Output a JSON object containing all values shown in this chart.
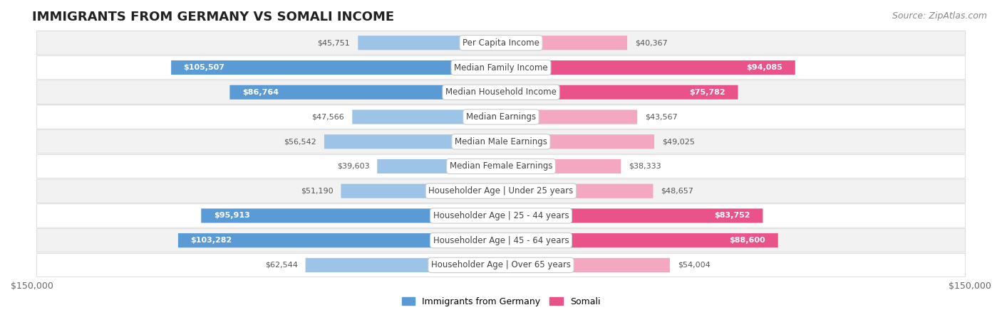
{
  "title": "IMMIGRANTS FROM GERMANY VS SOMALI INCOME",
  "source": "Source: ZipAtlas.com",
  "categories": [
    "Per Capita Income",
    "Median Family Income",
    "Median Household Income",
    "Median Earnings",
    "Median Male Earnings",
    "Median Female Earnings",
    "Householder Age | Under 25 years",
    "Householder Age | 25 - 44 years",
    "Householder Age | 45 - 64 years",
    "Householder Age | Over 65 years"
  ],
  "germany_values": [
    45751,
    105507,
    86764,
    47566,
    56542,
    39603,
    51190,
    95913,
    103282,
    62544
  ],
  "somali_values": [
    40367,
    94085,
    75782,
    43567,
    49025,
    38333,
    48657,
    83752,
    88600,
    54004
  ],
  "germany_color_large": "#5b9bd5",
  "germany_color_small": "#9dc3e6",
  "somali_color_large": "#e9538a",
  "somali_color_small": "#f4a7c0",
  "bar_height": 0.58,
  "max_value": 150000,
  "background_color": "#ffffff",
  "row_bg_even": "#f2f2f2",
  "row_bg_odd": "#ffffff",
  "legend_germany": "Immigrants from Germany",
  "legend_somali": "Somali",
  "xlabel_left": "$150,000",
  "xlabel_right": "$150,000",
  "title_fontsize": 13,
  "label_fontsize": 8,
  "category_fontsize": 8.5,
  "source_fontsize": 9,
  "inner_label_threshold": 70000
}
